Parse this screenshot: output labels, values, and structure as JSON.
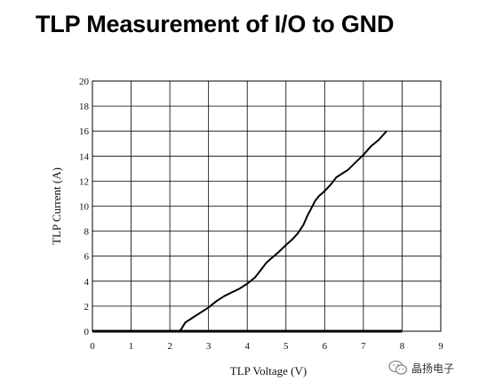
{
  "title": "TLP Measurement of I/O to GND",
  "watermark": {
    "text": "晶扬电子",
    "icon": "wechat-logo-icon"
  },
  "chart_data": {
    "type": "line",
    "title": "TLP Measurement of I/O to GND",
    "xlabel": "TLP Voltage (V)",
    "ylabel": "TLP Current (A)",
    "xlim": [
      0,
      9
    ],
    "ylim": [
      0,
      20
    ],
    "xticks": [
      0,
      1,
      2,
      3,
      4,
      5,
      6,
      7,
      8,
      9
    ],
    "yticks": [
      0,
      2,
      4,
      6,
      8,
      10,
      12,
      14,
      16,
      18,
      20
    ],
    "grid": true,
    "series": [
      {
        "color": "#000000",
        "x": [
          0,
          2.25,
          2.3,
          2.4,
          2.6,
          2.8,
          3.0,
          3.2,
          3.4,
          3.6,
          3.8,
          4.0,
          4.2,
          4.35,
          4.5,
          4.65,
          4.8,
          4.9,
          5.0,
          5.15,
          5.3,
          5.45,
          5.55,
          5.65,
          5.7,
          5.75,
          5.85,
          6.0,
          6.15,
          6.3,
          6.45,
          6.6,
          6.8,
          7.0,
          7.2,
          7.4,
          7.6
        ],
        "y": [
          0,
          0,
          0.2,
          0.7,
          1.1,
          1.5,
          1.9,
          2.4,
          2.8,
          3.1,
          3.4,
          3.8,
          4.3,
          4.9,
          5.5,
          5.9,
          6.3,
          6.6,
          6.9,
          7.3,
          7.8,
          8.5,
          9.2,
          9.8,
          10.1,
          10.4,
          10.8,
          11.2,
          11.7,
          12.3,
          12.6,
          12.9,
          13.5,
          14.1,
          14.8,
          15.3,
          16.0
        ]
      }
    ]
  }
}
